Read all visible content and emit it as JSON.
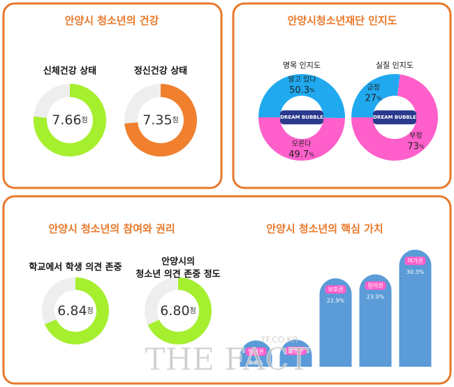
{
  "chart_data": [
    {
      "type": "score-donut",
      "title": "안양시 청소년의 건강",
      "categories": [
        [
          "신체건강 상태"
        ],
        [
          "정신건강 상태"
        ]
      ],
      "values": [
        7.66,
        7.35
      ],
      "unit": "점",
      "ylim": [
        0,
        10
      ],
      "colors": [
        "#a5ef2f",
        "#f07f2e"
      ],
      "track_color": "#eeeeee"
    },
    {
      "type": "pie-donut",
      "title": "안양시청소년재단 인지도",
      "center_label": "DREAM BUBBLE",
      "unit": "%",
      "series": [
        {
          "name": "명목 인지도",
          "categories": [
            "알고 있다",
            "모른다"
          ],
          "values": [
            50.3,
            49.7
          ],
          "colors": [
            "#20a9ef",
            "#ff5fcb"
          ]
        },
        {
          "name": "실질 인지도",
          "categories": [
            "긍정",
            "부정"
          ],
          "values": [
            27,
            73
          ],
          "colors": [
            "#20a9ef",
            "#ff5fcb"
          ]
        }
      ]
    },
    {
      "type": "score-donut",
      "title": "안양시 청소년의 참여와 권리",
      "categories": [
        [
          "학교에서 학생 의견 존중"
        ],
        [
          "안양시의",
          "청소년 의견 존중 정도"
        ]
      ],
      "values": [
        6.84,
        6.8
      ],
      "value_labels": [
        "6.84",
        "6.80"
      ],
      "unit": "점",
      "ylim": [
        0,
        10
      ],
      "colors": [
        "#a5ef2f",
        "#a5ef2f"
      ],
      "track_color": "#eeeeee"
    },
    {
      "type": "bar",
      "title": "안양시 청소년의 핵심 가치",
      "categories": [
        "발달권",
        "생존권",
        "보호권",
        "참여권",
        "여가권"
      ],
      "values": [
        6.8,
        7,
        22.9,
        23.9,
        30.3
      ],
      "value_labels": [
        "6.8%",
        null,
        "22.9%",
        "23.9%",
        "30.3%"
      ],
      "ylim": [
        0,
        32
      ],
      "color": "#5a9bd8",
      "label_color": "#ff5fcb"
    }
  ],
  "watermark": {
    "text": "THE FACT",
    "site": "TF.CO.KR"
  }
}
